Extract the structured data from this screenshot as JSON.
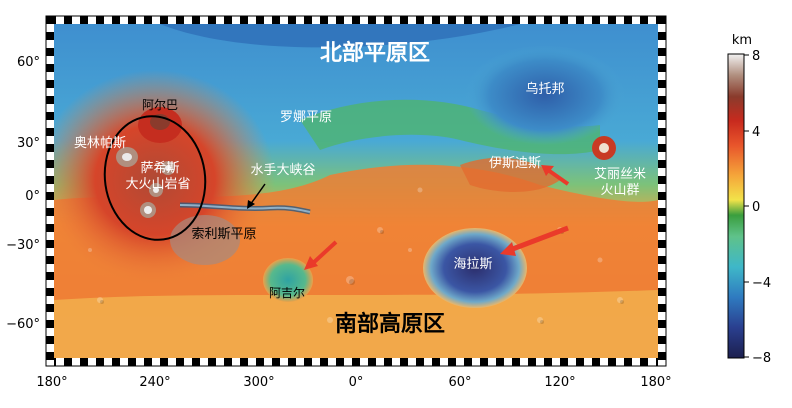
{
  "map": {
    "region_labels": {
      "north_plains": "北部平原区",
      "south_highlands": "南部高原区",
      "utopia": "乌托邦",
      "arcadia": "阿尔巴",
      "olympus": "奥林帕斯",
      "tharsis_1": "萨希斯",
      "tharsis_2": "大火山岩省",
      "acidalia": "罗娜平原",
      "valles": "水手大峡谷",
      "solis": "索利斯平原",
      "argyre": "阿吉尔",
      "hellas": "海拉斯",
      "isidis": "伊斯迪斯",
      "elysium_1": "艾丽丝米",
      "elysium_2": "火山群"
    },
    "lat_ticks": [
      "60°",
      "30°",
      "0°",
      "−30°",
      "−60°"
    ],
    "lon_ticks": [
      "180°",
      "240°",
      "300°",
      "0°",
      "60°",
      "120°",
      "180°"
    ]
  },
  "colorbar": {
    "unit": "km",
    "ticks": [
      "8",
      "4",
      "0",
      "−4",
      "−8"
    ],
    "range": [
      -8,
      8
    ],
    "stops": [
      "#1c1f4e",
      "#2a3f8f",
      "#2f7bc0",
      "#3fb7c8",
      "#5fc28a",
      "#3a9e3e",
      "#f2e34a",
      "#f5a63a",
      "#e8552b",
      "#c82a1e",
      "#8a3b2c",
      "#b08f7f",
      "#f2f2f2"
    ]
  }
}
